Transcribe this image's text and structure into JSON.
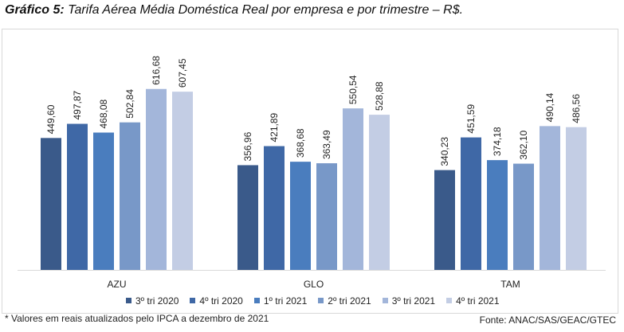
{
  "title": {
    "prefix": "Gráfico 5:",
    "text": " Tarifa Aérea Média Doméstica Real por empresa e por trimestre – R$."
  },
  "footnote": "* Valores em reais atualizados pelo IPCA a dezembro de 2021",
  "source": "Fonte: ANAC/SAS/GEAC/GTEC",
  "chart_data": {
    "type": "bar",
    "title": "Tarifa Aérea Média Doméstica Real por empresa e por trimestre – R$.",
    "xlabel": "",
    "ylabel": "",
    "ylim": [
      0,
      700
    ],
    "grid": false,
    "legend_position": "bottom",
    "categories": [
      "AZU",
      "GLO",
      "TAM"
    ],
    "series": [
      {
        "name": "3º tri 2020",
        "color": "#3a5a8a",
        "values": [
          449.6,
          356.96,
          340.23
        ],
        "labels": [
          "449,60",
          "356,96",
          "340,23"
        ]
      },
      {
        "name": "4º tri 2020",
        "color": "#3f68a6",
        "values": [
          497.87,
          421.89,
          451.59
        ],
        "labels": [
          "497,87",
          "421,89",
          "451,59"
        ]
      },
      {
        "name": "1º tri 2021",
        "color": "#4a7dbe",
        "values": [
          468.08,
          368.68,
          374.18
        ],
        "labels": [
          "468,08",
          "368,68",
          "374,18"
        ]
      },
      {
        "name": "2º tri 2021",
        "color": "#7898c8",
        "values": [
          502.84,
          363.49,
          362.1
        ],
        "labels": [
          "502,84",
          "363,49",
          "362,10"
        ]
      },
      {
        "name": "3º tri 2021",
        "color": "#a3b6da",
        "values": [
          616.68,
          550.54,
          490.14
        ],
        "labels": [
          "616,68",
          "550,54",
          "490,14"
        ]
      },
      {
        "name": "4º tri 2021",
        "color": "#c3cde4",
        "values": [
          607.45,
          528.88,
          486.56
        ],
        "labels": [
          "607,45",
          "528,88",
          "486,56"
        ]
      }
    ]
  }
}
